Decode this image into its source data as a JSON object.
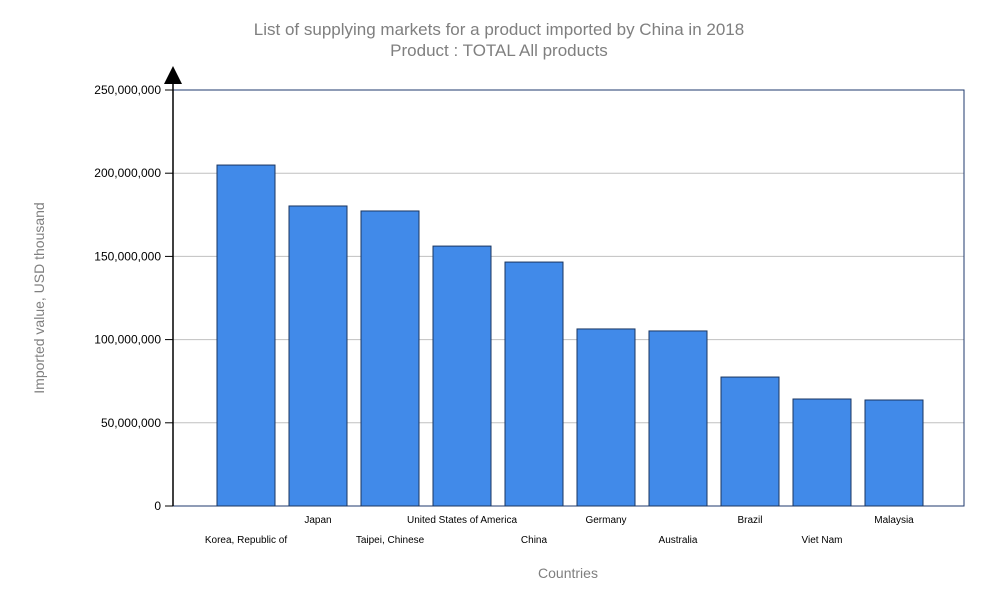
{
  "chart_data": {
    "type": "bar",
    "title": "List of supplying markets for a product imported by China in 2018",
    "subtitle": "Product : TOTAL All products",
    "xlabel": "Countries",
    "ylabel": "Imported value, USD thousand",
    "ylim": [
      0,
      250000000
    ],
    "yticks": [
      0,
      50000000,
      100000000,
      150000000,
      200000000,
      250000000
    ],
    "ytick_labels": [
      "0",
      "50,000,000",
      "100,000,000",
      "150,000,000",
      "200,000,000",
      "250,000,000"
    ],
    "grid": true,
    "categories": [
      "Korea, Republic of",
      "Japan",
      "Taipei, Chinese",
      "United States of America",
      "China",
      "Germany",
      "Australia",
      "Brazil",
      "Viet Nam",
      "Malaysia"
    ],
    "values": [
      204900000,
      180300000,
      177300000,
      156200000,
      146600000,
      106400000,
      105200000,
      77500000,
      64300000,
      63700000
    ],
    "colors": {
      "bar": "#418ae9",
      "bar_stroke": "#1a3560",
      "frame": "#1f3a6e",
      "grid": "#c0c0c0",
      "title": "#7f7f7f"
    }
  }
}
